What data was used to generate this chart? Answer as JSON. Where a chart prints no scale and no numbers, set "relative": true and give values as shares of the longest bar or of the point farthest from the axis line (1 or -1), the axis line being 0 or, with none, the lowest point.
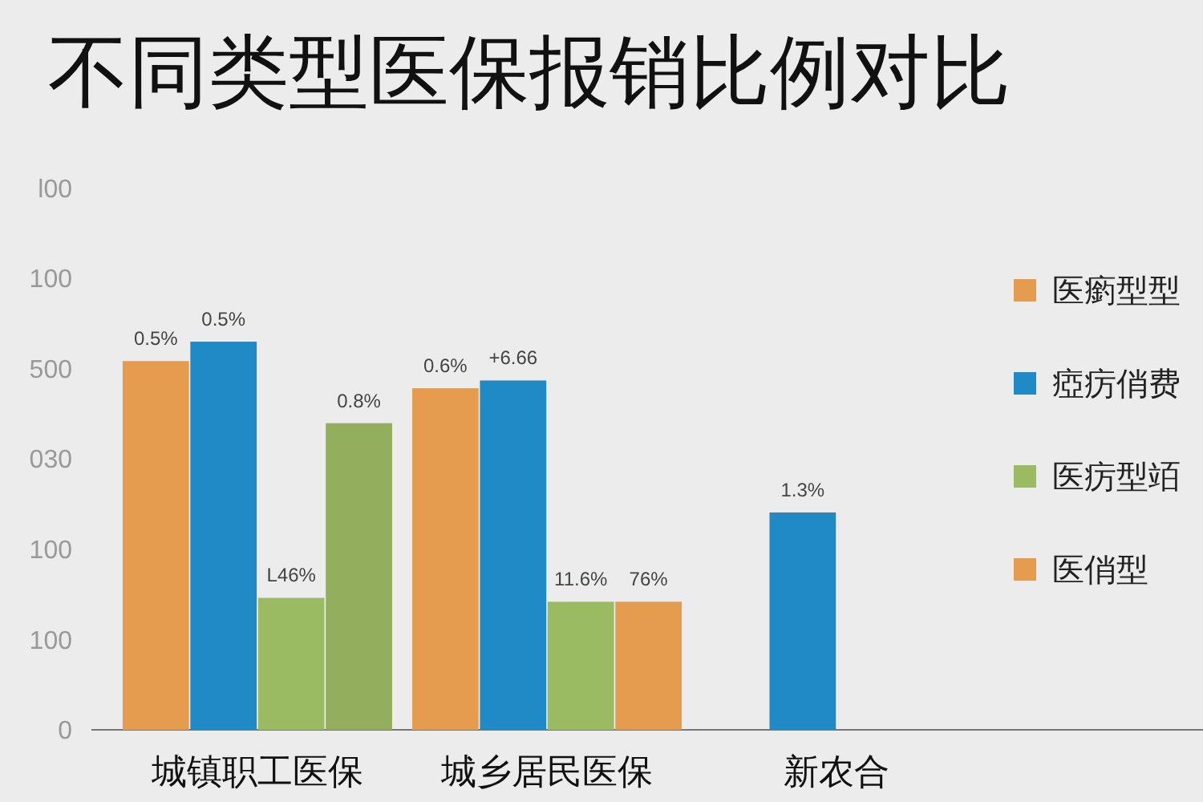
{
  "chart_data": {
    "type": "bar",
    "title": "不同类型医保报销比例对比",
    "relative": true,
    "categories": [
      "城镇职工医保",
      "城乡居民医保",
      "新农合"
    ],
    "series": [
      {
        "name": "医瘹型型",
        "color": "#e59c4f",
        "values": [
          0.95,
          0.88,
          null
        ]
      },
      {
        "name": "瘂疠俏费",
        "color": "#1f8ac6",
        "values": [
          1,
          0.9,
          0.56
        ]
      },
      {
        "name": "医疠型竡",
        "color": "#9bbb63",
        "values": [
          0.34,
          0.33,
          null
        ]
      },
      {
        "name": "医俏型",
        "color": "#e59c4f",
        "colors": [
          "#93ae5c",
          "#e59c4f",
          null
        ],
        "values": [
          0.79,
          0.33,
          null
        ]
      }
    ],
    "annotations": [
      "0",
      "100",
      "100",
      "030",
      "500",
      "100",
      "l00",
      "0.5%",
      "0.5%",
      "L46%",
      "0.8%",
      "0.6%",
      "+6.66",
      "11.6%",
      "76%",
      "1.3%"
    ],
    "legend": "right"
  }
}
